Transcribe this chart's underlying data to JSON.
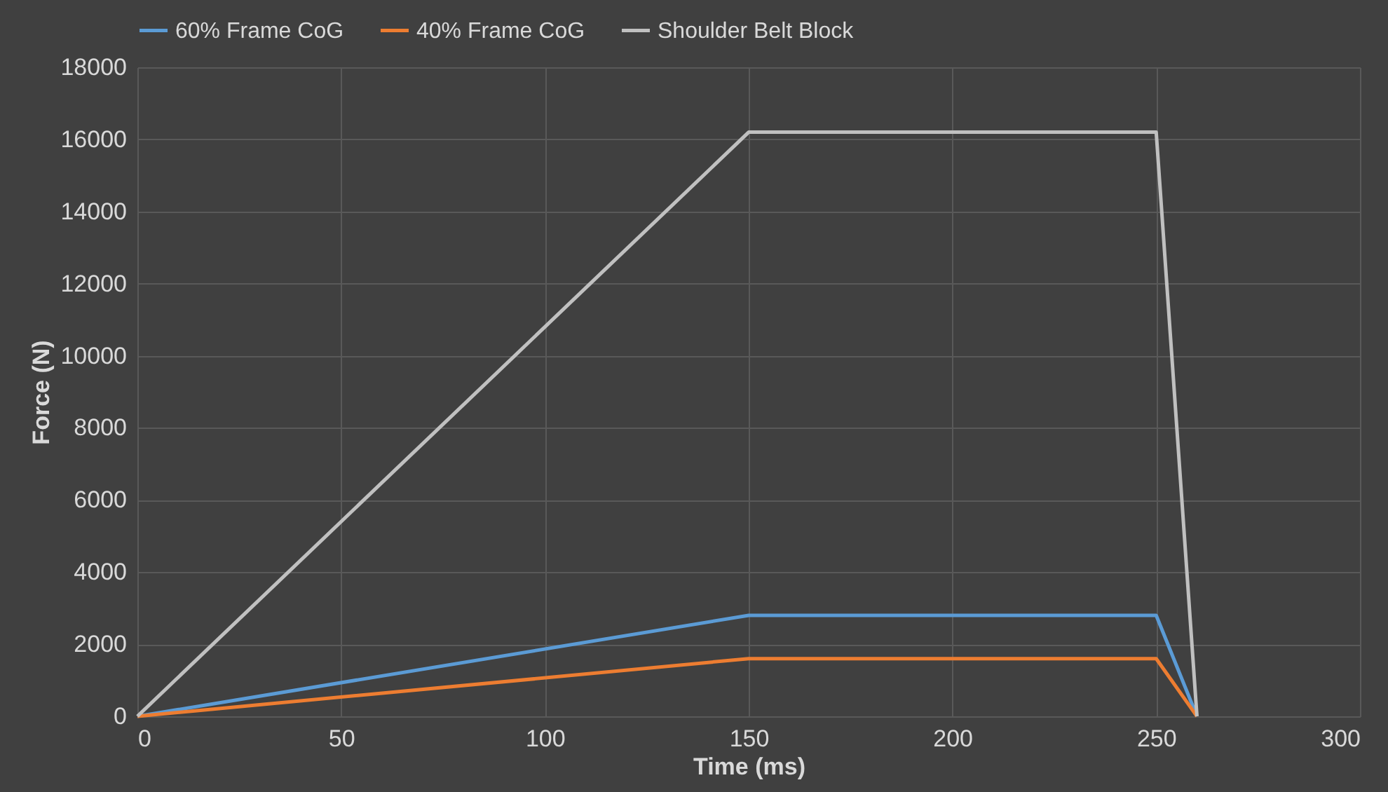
{
  "chart_data": {
    "type": "line",
    "xlabel": "Time (ms)",
    "ylabel": "Force  (N)",
    "xlim": [
      0,
      300
    ],
    "xticks": [
      0,
      50,
      100,
      150,
      200,
      250,
      300
    ],
    "ylim": [
      0,
      18000
    ],
    "yticks": [
      0,
      2000,
      4000,
      6000,
      8000,
      10000,
      12000,
      14000,
      16000,
      18000
    ],
    "grid": true,
    "legend": "top",
    "line_style": "solid",
    "marker": "none",
    "series": [
      {
        "name": "60% Frame CoG",
        "color": "#5b9bd5",
        "x": [
          0,
          150,
          250,
          260
        ],
        "values": [
          0,
          2800,
          2800,
          0
        ]
      },
      {
        "name": "40% Frame CoG",
        "color": "#ed7d31",
        "x": [
          0,
          150,
          250,
          260
        ],
        "values": [
          0,
          1600,
          1600,
          0
        ]
      },
      {
        "name": "Shoulder Belt Block",
        "color": "#c0c0c0",
        "x": [
          0,
          150,
          250,
          260
        ],
        "values": [
          0,
          16200,
          16200,
          0
        ]
      }
    ]
  }
}
